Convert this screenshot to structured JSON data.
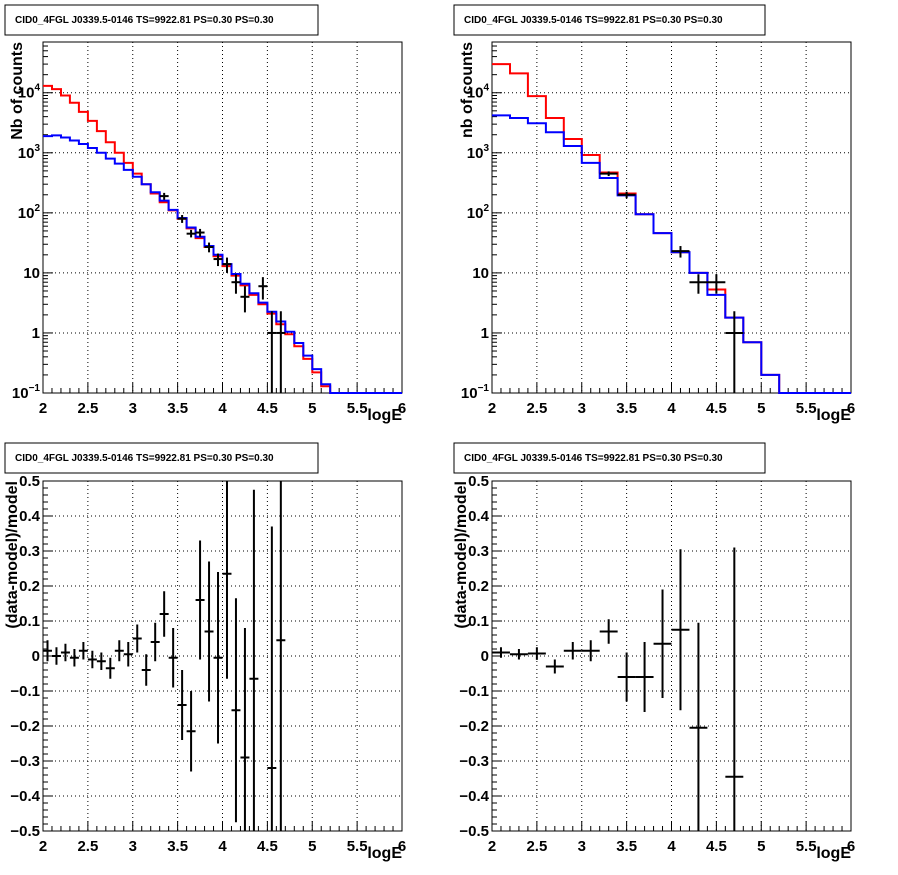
{
  "chart_data": [
    {
      "id": "tl",
      "type": "histogram",
      "title": "CID0_4FGL J0339.5-0146 TS=9922.81 PS=0.30 PS=0.30",
      "xlabel": "logE",
      "ylabel": "Nb of counts",
      "xlim": [
        2,
        6
      ],
      "ylim": [
        0.1,
        70000
      ],
      "yscale": "log",
      "grid": true,
      "x_ticks": [
        "2",
        "2.5",
        "3",
        "3.5",
        "4",
        "4.5",
        "5",
        "5.5",
        "6"
      ],
      "y_ticks": [
        {
          "v": 0.1,
          "base": "10",
          "exp": "−1"
        },
        {
          "v": 1,
          "label": "1"
        },
        {
          "v": 10,
          "label": "10"
        },
        {
          "v": 100,
          "base": "10",
          "exp": "2"
        },
        {
          "v": 1000,
          "base": "10",
          "exp": "3"
        },
        {
          "v": 10000,
          "base": "10",
          "exp": "4"
        }
      ],
      "bin_edges": [
        2.0,
        2.1,
        2.2,
        2.3,
        2.4,
        2.5,
        2.6,
        2.7,
        2.8,
        2.9,
        3.0,
        3.1,
        3.2,
        3.3,
        3.4,
        3.5,
        3.6,
        3.7,
        3.8,
        3.9,
        4.0,
        4.1,
        4.2,
        4.3,
        4.4,
        4.5,
        4.6,
        4.7,
        4.8,
        4.9,
        5.0,
        5.1,
        5.2,
        5.3,
        5.4,
        5.5,
        5.6,
        5.7,
        5.8,
        5.9,
        6.0
      ],
      "series": [
        {
          "color": "#ff0000",
          "values": [
            13000,
            11500,
            9000,
            6800,
            4800,
            3400,
            2300,
            1500,
            1000,
            680,
            450,
            300,
            210,
            150,
            110,
            80,
            55,
            38,
            27,
            19,
            13,
            9,
            6.2,
            4.3,
            3.0,
            2.1,
            1.4,
            0.95,
            0.6,
            0.37,
            0.22,
            0.13,
            0.1,
            0.1,
            0.1,
            0.1,
            0.1,
            0.1,
            0.1,
            0.1
          ]
        },
        {
          "color": "#0000ff",
          "values": [
            1900,
            1950,
            1800,
            1600,
            1400,
            1200,
            1000,
            800,
            660,
            520,
            400,
            300,
            220,
            160,
            112,
            82,
            57,
            40,
            28,
            20,
            14,
            9.6,
            6.6,
            4.6,
            3.2,
            2.25,
            1.55,
            1.05,
            0.68,
            0.42,
            0.25,
            0.14,
            0.1,
            0.1,
            0.1,
            0.1,
            0.1,
            0.1,
            0.1,
            0.1
          ]
        }
      ],
      "data_points": [
        {
          "x": 3.35,
          "y": 190,
          "lo": 165,
          "hi": 215
        },
        {
          "x": 3.55,
          "y": 80,
          "lo": 68,
          "hi": 92
        },
        {
          "x": 3.65,
          "y": 45,
          "lo": 39,
          "hi": 52
        },
        {
          "x": 3.75,
          "y": 47,
          "lo": 40,
          "hi": 54
        },
        {
          "x": 3.85,
          "y": 27,
          "lo": 22,
          "hi": 32
        },
        {
          "x": 3.95,
          "y": 17,
          "lo": 13,
          "hi": 21
        },
        {
          "x": 4.05,
          "y": 14,
          "lo": 10,
          "hi": 18
        },
        {
          "x": 4.15,
          "y": 7,
          "lo": 4.5,
          "hi": 9.5
        },
        {
          "x": 4.25,
          "y": 4,
          "lo": 2.2,
          "hi": 6
        },
        {
          "x": 4.45,
          "y": 6,
          "lo": 3.6,
          "hi": 8.5
        },
        {
          "x": 4.55,
          "y": 1,
          "lo": 0.1,
          "hi": 2.3
        },
        {
          "x": 4.65,
          "y": 1,
          "lo": 0.1,
          "hi": 2.3
        }
      ]
    },
    {
      "id": "tr",
      "type": "histogram",
      "title": "CID0_4FGL J0339.5-0146 TS=9922.81 PS=0.30 PS=0.30",
      "xlabel": "logE",
      "ylabel": "nb of counts",
      "xlim": [
        2,
        6
      ],
      "ylim": [
        0.1,
        70000
      ],
      "yscale": "log",
      "grid": true,
      "x_ticks": [
        "2",
        "2.5",
        "3",
        "3.5",
        "4",
        "4.5",
        "5",
        "5.5",
        "6"
      ],
      "y_ticks": [
        {
          "v": 0.1,
          "base": "10",
          "exp": "−1"
        },
        {
          "v": 1,
          "label": "1"
        },
        {
          "v": 10,
          "label": "10"
        },
        {
          "v": 100,
          "base": "10",
          "exp": "2"
        },
        {
          "v": 1000,
          "base": "10",
          "exp": "3"
        },
        {
          "v": 10000,
          "base": "10",
          "exp": "4"
        }
      ],
      "bin_edges": [
        2.0,
        2.2,
        2.4,
        2.6,
        2.8,
        3.0,
        3.2,
        3.4,
        3.6,
        3.8,
        4.0,
        4.2,
        4.4,
        4.6,
        4.8,
        5.0,
        5.2,
        5.4,
        5.6,
        5.8,
        6.0
      ],
      "series": [
        {
          "color": "#ff0000",
          "values": [
            30000,
            21000,
            8800,
            3800,
            1700,
            920,
            470,
            210,
            95,
            46,
            22,
            10,
            5.3,
            1.8,
            0.7,
            0.2,
            0.1,
            0.1,
            0.1,
            0.1
          ]
        },
        {
          "color": "#0000ff",
          "values": [
            4200,
            3800,
            3100,
            2200,
            1300,
            680,
            380,
            195,
            95,
            46,
            22,
            10,
            4.3,
            1.8,
            0.7,
            0.2,
            0.1,
            0.1,
            0.1,
            0.1
          ]
        }
      ],
      "data_points": [
        {
          "x": 3.3,
          "y": 450,
          "lo": 410,
          "hi": 490
        },
        {
          "x": 3.5,
          "y": 200,
          "lo": 175,
          "hi": 225
        },
        {
          "x": 4.1,
          "y": 23,
          "lo": 18,
          "hi": 28
        },
        {
          "x": 4.3,
          "y": 7,
          "lo": 4.5,
          "hi": 9.5
        },
        {
          "x": 4.5,
          "y": 7,
          "lo": 4.5,
          "hi": 9.5
        },
        {
          "x": 4.7,
          "y": 1,
          "lo": 0.1,
          "hi": 2.3
        }
      ]
    },
    {
      "id": "bl",
      "type": "scatter",
      "title": "CID0_4FGL J0339.5-0146 TS=9922.81 PS=0.30 PS=0.30",
      "xlabel": "logE",
      "ylabel": "(data-model)/model",
      "xlim": [
        2,
        6
      ],
      "ylim": [
        -0.5,
        0.5
      ],
      "yscale": "linear",
      "grid": true,
      "x_ticks": [
        "2",
        "2.5",
        "3",
        "3.5",
        "4",
        "4.5",
        "5",
        "5.5",
        "6"
      ],
      "y_ticks": [
        {
          "v": -0.5,
          "label": "−0.5"
        },
        {
          "v": -0.4,
          "label": "−0.4"
        },
        {
          "v": -0.3,
          "label": "−0.3"
        },
        {
          "v": -0.2,
          "label": "−0.2"
        },
        {
          "v": -0.1,
          "label": "−0.1"
        },
        {
          "v": 0,
          "label": "0"
        },
        {
          "v": 0.1,
          "label": "0.1"
        },
        {
          "v": 0.2,
          "label": "0.2"
        },
        {
          "v": 0.3,
          "label": "0.3"
        },
        {
          "v": 0.4,
          "label": "0.4"
        },
        {
          "v": 0.5,
          "label": "0.5"
        }
      ],
      "points": [
        {
          "x": 2.05,
          "y": 0.015,
          "err": 0.03,
          "dx": 0.05
        },
        {
          "x": 2.15,
          "y": 0.0,
          "err": 0.025,
          "dx": 0.05
        },
        {
          "x": 2.25,
          "y": 0.01,
          "err": 0.025,
          "dx": 0.05
        },
        {
          "x": 2.35,
          "y": -0.005,
          "err": 0.025,
          "dx": 0.05
        },
        {
          "x": 2.45,
          "y": 0.015,
          "err": 0.025,
          "dx": 0.05
        },
        {
          "x": 2.55,
          "y": -0.01,
          "err": 0.025,
          "dx": 0.05
        },
        {
          "x": 2.65,
          "y": -0.015,
          "err": 0.025,
          "dx": 0.05
        },
        {
          "x": 2.75,
          "y": -0.035,
          "err": 0.03,
          "dx": 0.05
        },
        {
          "x": 2.85,
          "y": 0.015,
          "err": 0.03,
          "dx": 0.05
        },
        {
          "x": 2.95,
          "y": 0.005,
          "err": 0.035,
          "dx": 0.05
        },
        {
          "x": 3.05,
          "y": 0.05,
          "err": 0.04,
          "dx": 0.05
        },
        {
          "x": 3.15,
          "y": -0.04,
          "err": 0.045,
          "dx": 0.05
        },
        {
          "x": 3.25,
          "y": 0.04,
          "err": 0.055,
          "dx": 0.05
        },
        {
          "x": 3.35,
          "y": 0.12,
          "err": 0.065,
          "dx": 0.05
        },
        {
          "x": 3.45,
          "y": -0.005,
          "err": 0.085,
          "dx": 0.05
        },
        {
          "x": 3.55,
          "y": -0.14,
          "err": 0.1,
          "dx": 0.05
        },
        {
          "x": 3.65,
          "y": -0.215,
          "err": 0.115,
          "dx": 0.05
        },
        {
          "x": 3.75,
          "y": 0.16,
          "err": 0.17,
          "dx": 0.05
        },
        {
          "x": 3.85,
          "y": 0.07,
          "err": 0.2,
          "dx": 0.05
        },
        {
          "x": 3.95,
          "y": -0.005,
          "err": 0.245,
          "dx": 0.05
        },
        {
          "x": 4.05,
          "y": 0.235,
          "err": 0.3,
          "dx": 0.05
        },
        {
          "x": 4.15,
          "y": -0.155,
          "err": 0.32,
          "dx": 0.05
        },
        {
          "x": 4.25,
          "y": -0.29,
          "err": 0.37,
          "dx": 0.05
        },
        {
          "x": 4.35,
          "y": -0.065,
          "err": 0.54,
          "dx": 0.05
        },
        {
          "x": 4.55,
          "y": -0.32,
          "err": 0.69,
          "dx": 0.05
        },
        {
          "x": 4.65,
          "y": 0.045,
          "err": 1.0,
          "dx": 0.05
        }
      ]
    },
    {
      "id": "br",
      "type": "scatter",
      "title": "CID0_4FGL J0339.5-0146 TS=9922.81 PS=0.30 PS=0.30",
      "xlabel": "logE",
      "ylabel": "(data-model)/model",
      "xlim": [
        2,
        6
      ],
      "ylim": [
        -0.5,
        0.5
      ],
      "yscale": "linear",
      "grid": true,
      "x_ticks": [
        "2",
        "2.5",
        "3",
        "3.5",
        "4",
        "4.5",
        "5",
        "5.5",
        "6"
      ],
      "y_ticks": [
        {
          "v": -0.5,
          "label": "−0.5"
        },
        {
          "v": -0.4,
          "label": "−0.4"
        },
        {
          "v": -0.3,
          "label": "−0.3"
        },
        {
          "v": -0.2,
          "label": "−0.2"
        },
        {
          "v": -0.1,
          "label": "−0.1"
        },
        {
          "v": 0,
          "label": "0"
        },
        {
          "v": 0.1,
          "label": "0.1"
        },
        {
          "v": 0.2,
          "label": "0.2"
        },
        {
          "v": 0.3,
          "label": "0.3"
        },
        {
          "v": 0.4,
          "label": "0.4"
        },
        {
          "v": 0.5,
          "label": "0.5"
        }
      ],
      "points": [
        {
          "x": 2.1,
          "y": 0.01,
          "err": 0.015,
          "dx": 0.1
        },
        {
          "x": 2.3,
          "y": 0.005,
          "err": 0.015,
          "dx": 0.1
        },
        {
          "x": 2.5,
          "y": 0.007,
          "err": 0.018,
          "dx": 0.1
        },
        {
          "x": 2.7,
          "y": -0.03,
          "err": 0.02,
          "dx": 0.1
        },
        {
          "x": 2.9,
          "y": 0.015,
          "err": 0.025,
          "dx": 0.1
        },
        {
          "x": 3.1,
          "y": 0.015,
          "err": 0.03,
          "dx": 0.1
        },
        {
          "x": 3.3,
          "y": 0.07,
          "err": 0.035,
          "dx": 0.1
        },
        {
          "x": 3.5,
          "y": -0.06,
          "err": 0.07,
          "dx": 0.1
        },
        {
          "x": 3.7,
          "y": -0.06,
          "err": 0.1,
          "dx": 0.1
        },
        {
          "x": 3.9,
          "y": 0.035,
          "err": 0.155,
          "dx": 0.1
        },
        {
          "x": 4.1,
          "y": 0.075,
          "err": 0.23,
          "dx": 0.1
        },
        {
          "x": 4.3,
          "y": -0.205,
          "err": 0.3,
          "dx": 0.1
        },
        {
          "x": 4.7,
          "y": -0.345,
          "err": 0.655,
          "dx": 0.1
        }
      ]
    }
  ]
}
